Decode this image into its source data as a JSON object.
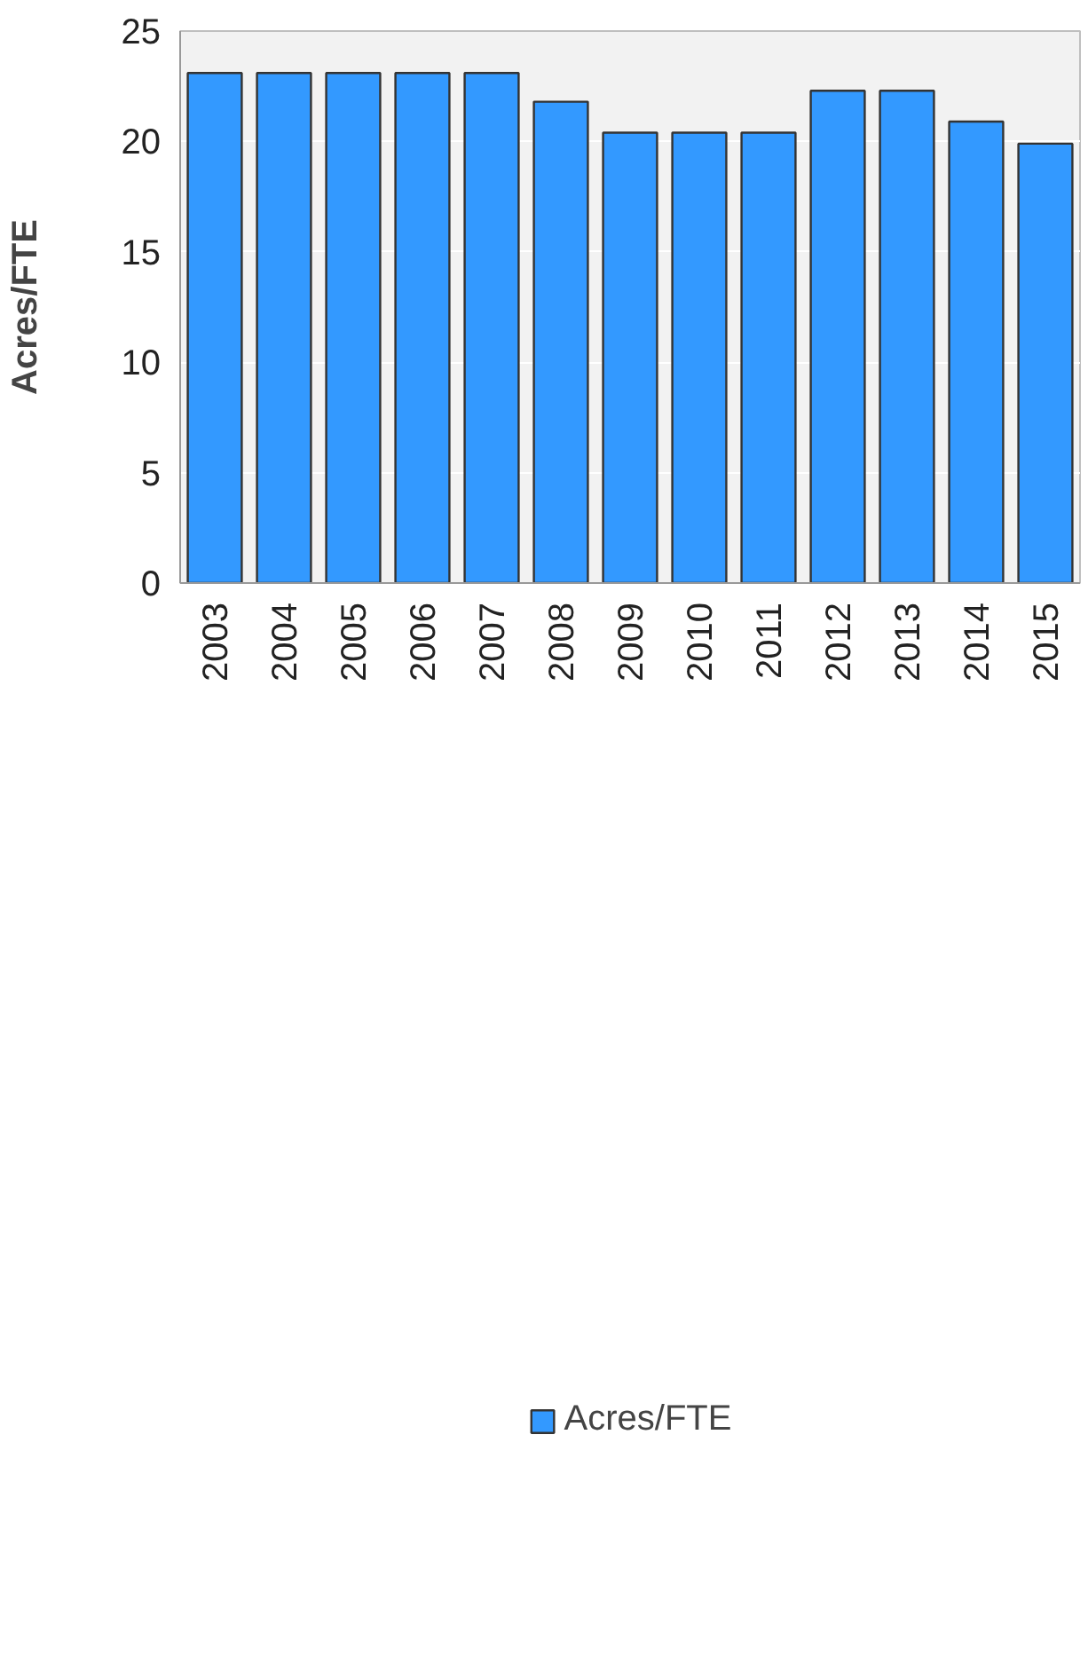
{
  "chart_data": {
    "type": "bar",
    "ylabel": "Acres/FTE",
    "categories": [
      "2003",
      "2004",
      "2005",
      "2006",
      "2007",
      "2008",
      "2009",
      "2010",
      "2011",
      "2012",
      "2013",
      "2014",
      "2015"
    ],
    "series": [
      {
        "name": "Acres/FTE",
        "color": "#3399ff",
        "values": [
          23.1,
          23.1,
          23.1,
          23.1,
          23.1,
          21.8,
          20.4,
          20.4,
          20.4,
          22.3,
          22.3,
          20.9,
          19.9
        ]
      }
    ],
    "ylim": [
      0,
      25
    ],
    "yticks": [
      0,
      5,
      10,
      15,
      20,
      25
    ],
    "grid": "y",
    "legend": "bottom"
  }
}
